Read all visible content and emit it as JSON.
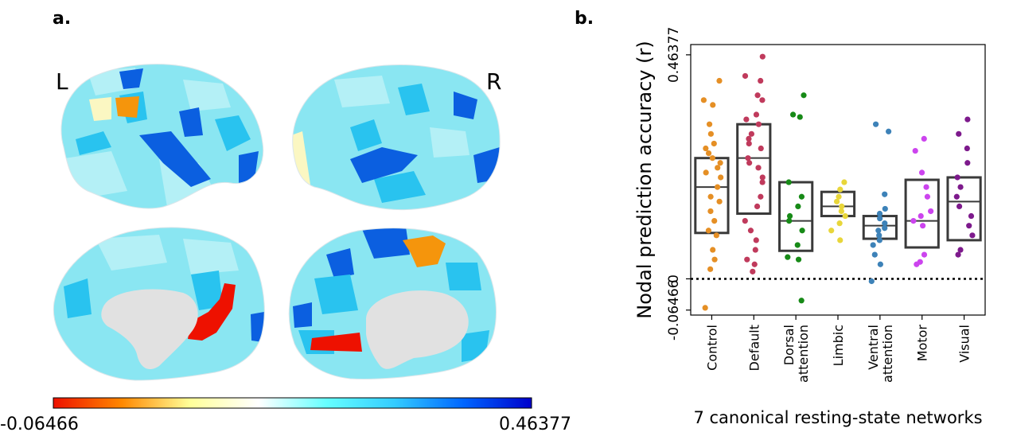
{
  "panel_a": {
    "label": "a.",
    "left_label": "L",
    "right_label": "R",
    "colorbar": {
      "min_label": "-0.06466",
      "max_label": "0.46377",
      "stops": [
        "#ee1100",
        "#ff8800",
        "#ffff99",
        "#ffffff",
        "#66ffff",
        "#33ccff",
        "#0066ff",
        "#0000cc"
      ]
    },
    "colors": {
      "base": "#8ae6f2",
      "light": "#b4f0f6",
      "mid": "#29c3ef",
      "deep": "#0b5fe0",
      "orange": "#f5950c",
      "red": "#ee1100",
      "pale_yellow": "#fbf7c2",
      "medial_wall": "#e1e1e1"
    }
  },
  "panel_b": {
    "label": "b."
  },
  "chart_data": {
    "type": "box",
    "title": "",
    "xlabel": "7 canonical resting-state networks",
    "ylabel": "Nodal prediction accuracy (r)",
    "ylim": [
      -0.075,
      0.485
    ],
    "yticks": [
      {
        "value": -0.06466,
        "label": "-0.06466"
      },
      {
        "value": 0,
        "label": "0"
      },
      {
        "value": 0.46377,
        "label": "0.46377"
      }
    ],
    "zero_line": true,
    "grid": false,
    "categories": [
      "Control",
      "Default",
      "Dorsal attention",
      "Limbic",
      "Ventral attention",
      "Motor",
      "Visual"
    ],
    "category_tick_labels": [
      [
        "Control"
      ],
      [
        "Default"
      ],
      [
        "Dorsal",
        "attention"
      ],
      [
        "Limbic"
      ],
      [
        "Ventral",
        "attention"
      ],
      [
        "Motor"
      ],
      [
        "Visual"
      ]
    ],
    "colors": [
      "#e58f25",
      "#c03a5c",
      "#178a17",
      "#e8d63a",
      "#3d82b8",
      "#cc44ee",
      "#7d1a8c"
    ],
    "series": [
      {
        "name": "Control",
        "box": {
          "q1": 0.095,
          "median": 0.19,
          "q3": 0.25
        },
        "points": [
          0.41,
          0.37,
          0.36,
          0.32,
          0.3,
          0.28,
          0.27,
          0.26,
          0.25,
          0.24,
          0.23,
          0.22,
          0.21,
          0.19,
          0.17,
          0.16,
          0.14,
          0.12,
          0.1,
          0.09,
          0.06,
          0.04,
          0.02,
          -0.06
        ]
      },
      {
        "name": "Default",
        "box": {
          "q1": 0.135,
          "median": 0.25,
          "q3": 0.32
        },
        "points": [
          0.46,
          0.42,
          0.41,
          0.38,
          0.37,
          0.34,
          0.33,
          0.32,
          0.3,
          0.29,
          0.28,
          0.27,
          0.25,
          0.24,
          0.23,
          0.21,
          0.2,
          0.17,
          0.15,
          0.12,
          0.1,
          0.08,
          0.06,
          0.04,
          0.03,
          0.015
        ]
      },
      {
        "name": "Dorsal attention",
        "box": {
          "q1": 0.058,
          "median": 0.12,
          "q3": 0.2
        },
        "points": [
          0.38,
          0.34,
          0.335,
          0.2,
          0.17,
          0.15,
          0.13,
          0.12,
          0.1,
          0.07,
          0.045,
          0.04,
          -0.045
        ]
      },
      {
        "name": "Limbic",
        "box": {
          "q1": 0.13,
          "median": 0.15,
          "q3": 0.18
        },
        "points": [
          0.2,
          0.185,
          0.17,
          0.16,
          0.15,
          0.14,
          0.13,
          0.115,
          0.1,
          0.08
        ]
      },
      {
        "name": "Ventral attention",
        "box": {
          "q1": 0.083,
          "median": 0.11,
          "q3": 0.13
        },
        "points": [
          0.32,
          0.305,
          0.175,
          0.145,
          0.135,
          0.125,
          0.115,
          0.105,
          0.1,
          0.09,
          0.08,
          0.07,
          0.05,
          0.03,
          -0.005
        ]
      },
      {
        "name": "Motor",
        "box": {
          "q1": 0.065,
          "median": 0.12,
          "q3": 0.205
        },
        "points": [
          0.29,
          0.265,
          0.22,
          0.19,
          0.17,
          0.14,
          0.13,
          0.12,
          0.11,
          0.05,
          0.035,
          0.03
        ]
      },
      {
        "name": "Visual",
        "box": {
          "q1": 0.08,
          "median": 0.16,
          "q3": 0.21
        },
        "points": [
          0.33,
          0.3,
          0.27,
          0.24,
          0.21,
          0.19,
          0.17,
          0.15,
          0.13,
          0.11,
          0.09,
          0.06,
          0.05
        ]
      }
    ]
  }
}
